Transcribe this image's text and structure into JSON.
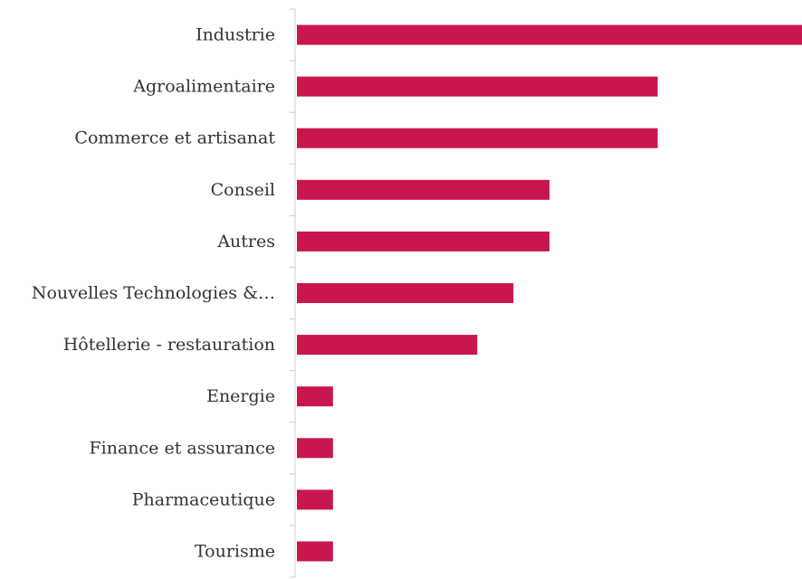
{
  "chart_data": {
    "type": "bar",
    "orientation": "horizontal",
    "categories": [
      "Industrie",
      "Agroalimentaire",
      "Commerce et artisanat",
      "Conseil",
      "Autres",
      "Nouvelles Technologies &…",
      "Hôtellerie - restauration",
      "Energie",
      "Finance et assurance",
      "Pharmaceutique",
      "Tourisme"
    ],
    "values": [
      14,
      10,
      10,
      7,
      7,
      6,
      5,
      1,
      1,
      1,
      1
    ],
    "xlim": [
      0,
      14
    ],
    "bar_color": "#c8174d",
    "grid": false,
    "legend": "none"
  }
}
